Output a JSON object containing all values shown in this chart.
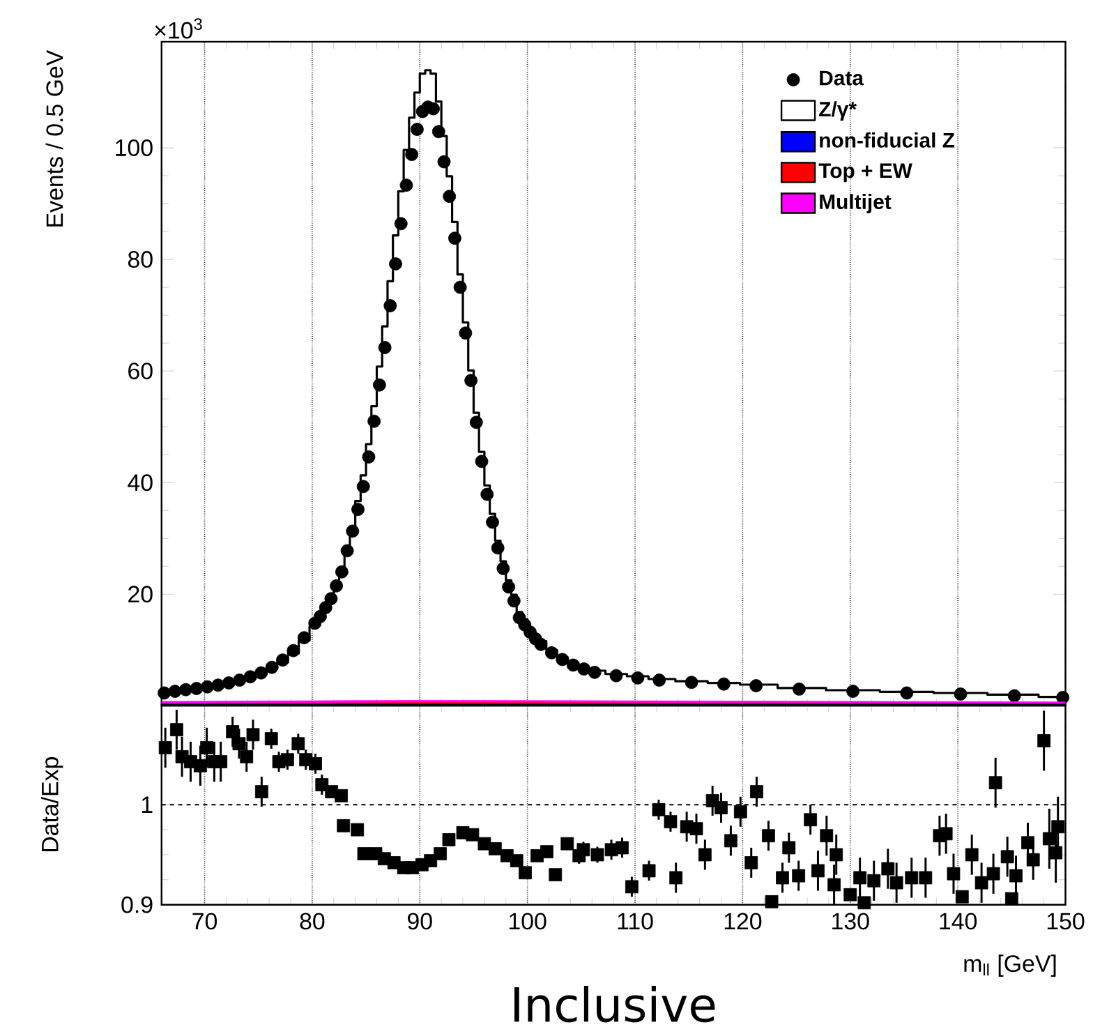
{
  "chart_data": [
    {
      "type": "scatter",
      "ylabel": "Events / 0.5 GeV",
      "annotations": [
        "×10$^{3}$"
      ],
      "xlim": [
        66,
        150
      ],
      "ylim": [
        0,
        119
      ],
      "xticks": [
        70,
        80,
        90,
        100,
        110,
        120,
        130,
        140,
        150
      ],
      "yticks": [
        20,
        40,
        60,
        80,
        100
      ],
      "tick_labels": "y",
      "grid": "x",
      "legend": "top right",
      "series": [
        {
          "name": "Data",
          "type": "scatter",
          "marker": "circle",
          "color": "#000000",
          "x": [
            66.25,
            67.25,
            68.25,
            69.25,
            70.25,
            71.25,
            72.25,
            73.25,
            74.25,
            75.25,
            76.25,
            77.25,
            78.25,
            79.25,
            80.25,
            80.75,
            81.25,
            81.75,
            82.25,
            82.75,
            83.25,
            83.75,
            84.25,
            84.75,
            85.25,
            85.75,
            86.25,
            86.75,
            87.25,
            87.75,
            88.25,
            88.75,
            89.25,
            89.75,
            90.25,
            90.75,
            91.25,
            91.75,
            92.25,
            92.75,
            93.25,
            93.75,
            94.25,
            94.75,
            95.25,
            95.75,
            96.25,
            96.75,
            97.25,
            97.75,
            98.25,
            98.75,
            99.25,
            99.75,
            100.25,
            100.75,
            101.25,
            102.25,
            103.25,
            104.25,
            105.25,
            106.25,
            108.25,
            110.25,
            112.25,
            115.25,
            118.25,
            121.25,
            125.25,
            130.25,
            135.25,
            140.25,
            145.25,
            149.75
          ],
          "values": [
            2.3,
            2.6,
            2.9,
            3.1,
            3.4,
            3.7,
            4.1,
            4.6,
            5.2,
            5.9,
            6.9,
            8.2,
            9.9,
            12.2,
            14.8,
            16.0,
            17.6,
            19.2,
            21.5,
            24.0,
            27.8,
            31.3,
            35.2,
            39.3,
            44.6,
            51.0,
            57.5,
            64.2,
            71.7,
            79.2,
            86.4,
            93.3,
            98.8,
            103.3,
            106.5,
            107.3,
            107.0,
            102.9,
            97.5,
            91.3,
            83.8,
            75.0,
            66.8,
            58.3,
            50.8,
            43.8,
            37.9,
            32.9,
            28.3,
            24.6,
            21.3,
            18.8,
            15.8,
            14.5,
            13.2,
            12.0,
            11.0,
            9.5,
            8.3,
            7.3,
            6.6,
            6.0,
            5.4,
            5.0,
            4.6,
            4.2,
            3.9,
            3.6,
            3.0,
            2.6,
            2.3,
            2.1,
            1.8,
            1.5
          ]
        },
        {
          "name": "Z/γ*",
          "type": "step",
          "color": "#000000",
          "x": [
            66.25,
            67.25,
            68.25,
            69.25,
            70.25,
            71.25,
            72.25,
            73.25,
            74.25,
            75.25,
            76.25,
            77.25,
            78.25,
            79.25,
            80.25,
            80.75,
            81.25,
            81.75,
            82.25,
            82.75,
            83.25,
            83.75,
            84.25,
            84.75,
            85.25,
            85.75,
            86.25,
            86.75,
            87.25,
            87.75,
            88.25,
            88.75,
            89.25,
            89.75,
            90.25,
            90.75,
            91.25,
            91.75,
            92.25,
            92.75,
            93.25,
            93.75,
            94.25,
            94.75,
            95.25,
            95.75,
            96.25,
            96.75,
            97.25,
            97.75,
            98.25,
            98.75,
            99.25,
            99.75,
            100.25,
            100.75,
            101.25,
            102.25,
            103.25,
            104.25,
            105.25,
            106.25,
            108.25,
            110.25,
            112.25,
            115.25,
            118.25,
            121.25,
            125.25,
            130.25,
            135.25,
            140.25,
            145.25,
            149.75
          ],
          "values": [
            2.2,
            2.5,
            2.8,
            3.0,
            3.2,
            3.5,
            3.9,
            4.4,
            5.0,
            5.6,
            6.6,
            7.8,
            9.4,
            11.7,
            14.2,
            15.6,
            17.3,
            19.0,
            21.5,
            24.5,
            28.5,
            32.1,
            36.7,
            41.3,
            46.9,
            53.7,
            60.8,
            68.0,
            76.1,
            84.3,
            92.2,
            99.6,
            105.4,
            109.9,
            113.3,
            113.9,
            113.3,
            108.3,
            102.1,
            94.9,
            86.7,
            77.3,
            68.7,
            60.1,
            52.5,
            45.5,
            39.5,
            34.4,
            29.6,
            25.9,
            22.5,
            19.9,
            16.8,
            15.5,
            14.0,
            12.6,
            11.6,
            10.0,
            8.7,
            7.7,
            6.9,
            6.3,
            5.7,
            5.3,
            4.8,
            4.4,
            4.1,
            3.8,
            3.2,
            2.8,
            2.5,
            2.3,
            2.0,
            1.6
          ]
        },
        {
          "name": "non-fiducial Z",
          "type": "area",
          "color": "#0000ff",
          "x": [
            66,
            91,
            150
          ],
          "values": [
            0.2,
            0.3,
            0.2
          ]
        },
        {
          "name": "Top + EW",
          "type": "area",
          "color": "#ff0000",
          "x": [
            66,
            91,
            150
          ],
          "values": [
            0.3,
            0.4,
            0.3
          ]
        },
        {
          "name": "Multijet",
          "type": "area",
          "color": "#ff00ff",
          "x": [
            66,
            91,
            150
          ],
          "values": [
            0.3,
            0.3,
            0.2
          ]
        }
      ]
    },
    {
      "type": "scatter",
      "xlabel": "m$_{ll}$ [GeV]",
      "ylabel": "Data/Exp",
      "annotations": [
        "Inclusive"
      ],
      "xlim": [
        66,
        150
      ],
      "ylim": [
        0.9,
        1.1
      ],
      "xticks": [
        70,
        80,
        90,
        100,
        110,
        120,
        130,
        140,
        150
      ],
      "yticks": [
        0.9,
        1
      ],
      "grid": "x",
      "marker": "square",
      "color": "#000000",
      "ref_lines": [
        {
          "axis": "y",
          "value": 1,
          "line_style": "dashed"
        }
      ],
      "x": [
        66.35,
        67.4,
        67.9,
        68.7,
        69.6,
        70.2,
        70.9,
        71.5,
        72.6,
        73.2,
        73.9,
        74.5,
        75.3,
        76.2,
        76.9,
        77.7,
        78.7,
        79.4,
        80.3,
        80.9,
        81.8,
        82.7,
        82.9,
        84.2,
        84.8,
        85.9,
        86.7,
        87.6,
        88.5,
        89.3,
        90.2,
        91.0,
        91.9,
        92.7,
        94.0,
        94.9,
        96.0,
        97.0,
        98.1,
        99.0,
        99.8,
        100.9,
        101.8,
        102.6,
        103.7,
        104.8,
        105.2,
        106.5,
        107.8,
        108.8,
        109.7,
        111.3,
        112.2,
        113.3,
        113.8,
        114.8,
        115.7,
        116.5,
        117.2,
        118.0,
        118.9,
        119.8,
        120.8,
        121.3,
        122.4,
        122.7,
        123.7,
        124.3,
        125.2,
        126.3,
        127.0,
        127.8,
        128.5,
        128.7,
        130.0,
        130.9,
        131.3,
        132.2,
        133.5,
        134.3,
        135.7,
        137.0,
        138.3,
        138.9,
        139.6,
        140.4,
        141.3,
        142.2,
        143.3,
        143.5,
        144.6,
        145.0,
        145.4,
        146.5,
        147.0,
        148.0,
        148.5,
        149.1,
        149.3
      ],
      "values": [
        1.057,
        1.075,
        1.048,
        1.043,
        1.039,
        1.057,
        1.043,
        1.043,
        1.073,
        1.061,
        1.048,
        1.07,
        1.013,
        1.066,
        1.043,
        1.045,
        1.061,
        1.045,
        1.041,
        1.02,
        1.013,
        1.009,
        0.979,
        0.975,
        0.951,
        0.951,
        0.946,
        0.942,
        0.937,
        0.937,
        0.94,
        0.944,
        0.951,
        0.965,
        0.972,
        0.97,
        0.961,
        0.956,
        0.949,
        0.944,
        0.932,
        0.949,
        0.953,
        0.93,
        0.961,
        0.949,
        0.955,
        0.95,
        0.955,
        0.957,
        0.918,
        0.934,
        0.995,
        0.983,
        0.927,
        0.978,
        0.976,
        0.95,
        1.004,
        0.997,
        0.964,
        0.993,
        0.942,
        1.013,
        0.969,
        0.903,
        0.927,
        0.957,
        0.929,
        0.985,
        0.934,
        0.969,
        0.92,
        0.95,
        0.91,
        0.927,
        0.902,
        0.924,
        0.936,
        0.922,
        0.927,
        0.927,
        0.969,
        0.971,
        0.931,
        0.908,
        0.95,
        0.922,
        0.931,
        1.022,
        0.948,
        0.906,
        0.929,
        0.962,
        0.945,
        1.064,
        0.966,
        0.952,
        0.978
      ],
      "errors": [
        0.02,
        0.02,
        0.02,
        0.02,
        0.02,
        0.02,
        0.02,
        0.02,
        0.015,
        0.015,
        0.015,
        0.015,
        0.015,
        0.01,
        0.01,
        0.01,
        0.01,
        0.01,
        0.01,
        0.01,
        null,
        null,
        null,
        null,
        null,
        null,
        null,
        null,
        null,
        null,
        null,
        null,
        null,
        null,
        null,
        null,
        null,
        null,
        null,
        null,
        null,
        0.005,
        0.005,
        0.005,
        0.005,
        0.008,
        0.008,
        0.008,
        0.01,
        0.01,
        0.01,
        0.01,
        0.01,
        0.01,
        0.015,
        0.015,
        0.015,
        0.015,
        0.015,
        0.015,
        0.015,
        0.015,
        0.015,
        0.015,
        0.015,
        null,
        0.015,
        0.015,
        0.015,
        0.015,
        0.02,
        0.02,
        0.02,
        0.02,
        null,
        0.02,
        null,
        0.02,
        0.02,
        0.02,
        0.02,
        0.02,
        0.02,
        0.02,
        0.02,
        null,
        0.02,
        0.02,
        0.02,
        0.025,
        0.02,
        null,
        0.02,
        0.02,
        0.02,
        0.03,
        0.03,
        0.03,
        0.03
      ]
    }
  ]
}
